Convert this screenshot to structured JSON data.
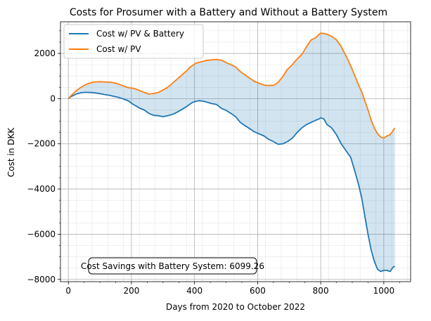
{
  "colors": {
    "battery": "#1f77b4",
    "pv": "#ff7f0e",
    "fill": "#1f77b4",
    "major_grid": "#b0b0b0",
    "minor_grid": "#e6e6e6"
  },
  "chart_data": {
    "type": "line",
    "title": "Costs for Prosumer with a Battery and Without a Battery System",
    "xlabel": "Days from 2020 to October 2022",
    "ylabel": "Cost in DKK",
    "xlim": [
      -25,
      1085
    ],
    "ylim": [
      -8100,
      3400
    ],
    "xticks": [
      0,
      200,
      400,
      600,
      800,
      1000
    ],
    "yticks": [
      -8000,
      -6000,
      -4000,
      -2000,
      0,
      2000
    ],
    "grid": true,
    "minor_grid": true,
    "legend": {
      "placement": "top-left"
    },
    "fill_between": {
      "series": [
        0,
        1
      ],
      "alpha": 0.2
    },
    "annotation": "Cost Savings with Battery System: 6099.26",
    "series": [
      {
        "name": "Cost w/ PV & Battery",
        "color": "#1f77b4",
        "x": [
          0,
          10,
          25,
          40,
          55,
          70,
          85,
          100,
          115,
          130,
          145,
          160,
          175,
          190,
          205,
          215,
          225,
          240,
          255,
          270,
          285,
          300,
          315,
          330,
          345,
          360,
          375,
          385,
          395,
          405,
          415,
          425,
          435,
          445,
          455,
          470,
          485,
          500,
          515,
          530,
          545,
          560,
          575,
          590,
          605,
          620,
          635,
          650,
          665,
          680,
          695,
          710,
          725,
          740,
          755,
          770,
          785,
          795,
          800,
          810,
          820,
          835,
          850,
          865,
          880,
          895,
          910,
          920,
          930,
          940,
          950,
          960,
          970,
          980,
          990,
          1000,
          1010,
          1020,
          1025,
          1030,
          1035
        ],
        "values": [
          0,
          100,
          200,
          260,
          280,
          270,
          250,
          220,
          180,
          150,
          100,
          50,
          -20,
          -100,
          -250,
          -330,
          -420,
          -500,
          -650,
          -740,
          -760,
          -800,
          -760,
          -700,
          -600,
          -480,
          -350,
          -250,
          -160,
          -120,
          -90,
          -110,
          -140,
          -180,
          -220,
          -260,
          -430,
          -520,
          -650,
          -800,
          -1050,
          -1200,
          -1330,
          -1470,
          -1560,
          -1650,
          -1800,
          -1900,
          -2020,
          -2000,
          -1900,
          -1750,
          -1500,
          -1300,
          -1150,
          -1050,
          -950,
          -900,
          -850,
          -900,
          -1150,
          -1300,
          -1600,
          -2000,
          -2300,
          -2600,
          -3300,
          -3800,
          -4400,
          -5200,
          -6000,
          -6700,
          -7200,
          -7550,
          -7650,
          -7600,
          -7600,
          -7650,
          -7550,
          -7450,
          -7420
        ]
      },
      {
        "name": "Cost w/ PV",
        "color": "#ff7f0e",
        "x": [
          0,
          10,
          25,
          40,
          55,
          70,
          85,
          100,
          115,
          130,
          145,
          160,
          175,
          190,
          205,
          215,
          225,
          240,
          255,
          270,
          285,
          300,
          315,
          330,
          345,
          360,
          375,
          385,
          395,
          405,
          415,
          425,
          435,
          445,
          455,
          470,
          485,
          500,
          515,
          530,
          545,
          560,
          575,
          590,
          605,
          620,
          635,
          650,
          665,
          680,
          695,
          710,
          725,
          740,
          755,
          770,
          785,
          795,
          800,
          810,
          820,
          835,
          850,
          865,
          880,
          895,
          910,
          920,
          930,
          940,
          950,
          960,
          970,
          980,
          990,
          1000,
          1010,
          1020,
          1025,
          1030,
          1035
        ],
        "values": [
          0,
          150,
          350,
          500,
          620,
          700,
          740,
          750,
          740,
          730,
          700,
          640,
          560,
          480,
          460,
          420,
          360,
          280,
          200,
          230,
          270,
          380,
          500,
          680,
          860,
          1050,
          1230,
          1380,
          1480,
          1570,
          1610,
          1640,
          1680,
          1700,
          1720,
          1730,
          1700,
          1600,
          1500,
          1400,
          1200,
          1050,
          900,
          760,
          680,
          600,
          580,
          580,
          720,
          980,
          1300,
          1500,
          1750,
          1950,
          2300,
          2600,
          2700,
          2850,
          2900,
          2880,
          2850,
          2750,
          2600,
          2300,
          1900,
          1450,
          950,
          600,
          300,
          -100,
          -500,
          -950,
          -1300,
          -1550,
          -1700,
          -1750,
          -1650,
          -1600,
          -1500,
          -1400,
          -1300
        ]
      }
    ]
  }
}
